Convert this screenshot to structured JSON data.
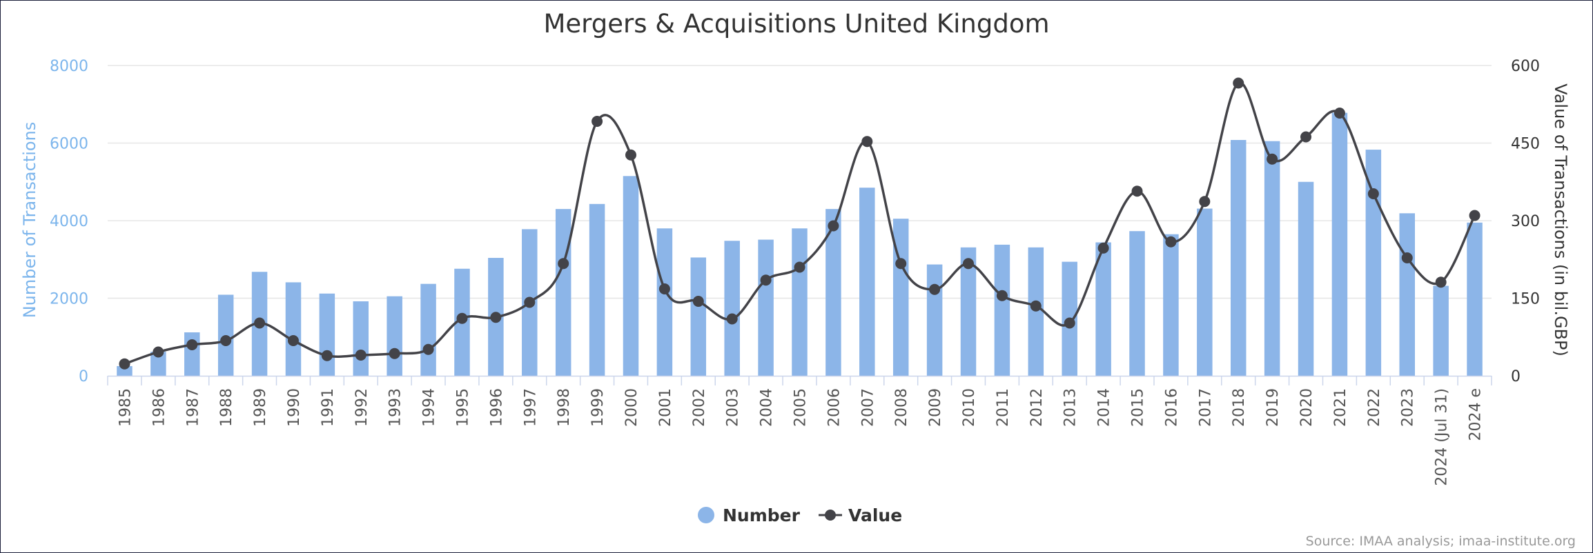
{
  "chart_data": {
    "type": "bar",
    "title": "Mergers & Acquisitions United Kingdom",
    "credits": "Source: IMAA analysis; imaa-institute.org",
    "categories": [
      "1985",
      "1986",
      "1987",
      "1988",
      "1989",
      "1990",
      "1991",
      "1992",
      "1993",
      "1994",
      "1995",
      "1996",
      "1997",
      "1998",
      "1999",
      "2000",
      "2001",
      "2002",
      "2003",
      "2004",
      "2005",
      "2006",
      "2007",
      "2008",
      "2009",
      "2010",
      "2011",
      "2012",
      "2013",
      "2014",
      "2015",
      "2016",
      "2017",
      "2018",
      "2019",
      "2020",
      "2021",
      "2022",
      "2023",
      "2024 (Jul 31)",
      "2024 e"
    ],
    "y_left": {
      "label": "Number of Transactions",
      "ticks": [
        "0",
        "2000",
        "4000",
        "6000",
        "8000"
      ],
      "range": [
        0,
        8000
      ]
    },
    "y_right": {
      "label": "Value of Transactions (in bil.GBP)",
      "ticks": [
        "0",
        "150",
        "300",
        "450",
        "600"
      ],
      "range": [
        0,
        600
      ]
    },
    "grid": true,
    "legend_position": "bottom-center",
    "series": [
      {
        "name": "Number",
        "type": "column",
        "axis": "left",
        "color": "#8cb5e8",
        "values": [
          250,
          620,
          1120,
          2090,
          2680,
          2410,
          2120,
          1920,
          2050,
          2370,
          2760,
          3040,
          3780,
          4300,
          4430,
          5150,
          3800,
          3050,
          3480,
          3510,
          3800,
          4300,
          4850,
          4050,
          2870,
          3310,
          3380,
          3310,
          2940,
          3440,
          3730,
          3650,
          4310,
          6080,
          6050,
          5000,
          6780,
          5830,
          4190,
          2320,
          3950
        ]
      },
      {
        "name": "Value",
        "type": "spline",
        "axis": "right",
        "color": "#434348",
        "values": [
          23,
          46,
          60,
          68,
          102,
          68,
          39,
          40,
          43,
          51,
          111,
          113,
          142,
          217,
          492,
          427,
          168,
          144,
          110,
          185,
          210,
          290,
          453,
          217,
          167,
          217,
          155,
          135,
          102,
          247,
          357,
          259,
          337,
          566,
          419,
          462,
          508,
          352,
          228,
          181,
          310
        ]
      }
    ]
  }
}
